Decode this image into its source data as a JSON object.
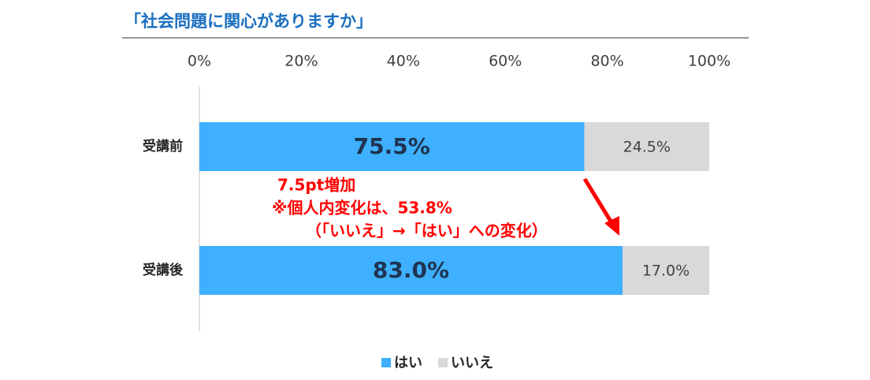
{
  "chart_data": {
    "type": "stacked-bar-horizontal",
    "title": "「社会問題に関心がありますか」",
    "categories": [
      "受講前",
      "受講後"
    ],
    "series": [
      {
        "name": "はい",
        "color": "#3eb0ff",
        "values": [
          75.5,
          83.0
        ],
        "value_labels": [
          "75.5%",
          "83.0%"
        ]
      },
      {
        "name": "いいえ",
        "color": "#d9d9d9",
        "values": [
          24.5,
          17.0
        ],
        "value_labels": [
          "24.5%",
          "17.0%"
        ]
      }
    ],
    "xlim": [
      0,
      100
    ],
    "xticks": [
      {
        "value": 0,
        "label": "0%"
      },
      {
        "value": 20,
        "label": "20%"
      },
      {
        "value": 40,
        "label": "40%"
      },
      {
        "value": 60,
        "label": "60%"
      },
      {
        "value": 80,
        "label": "80%"
      },
      {
        "value": 100,
        "label": "100%"
      }
    ],
    "annotations": [
      "7.5pt増加",
      "※個人内変化は、53.8%",
      "（「いいえ」→「はい」への変化）"
    ],
    "legend": "bottom"
  }
}
